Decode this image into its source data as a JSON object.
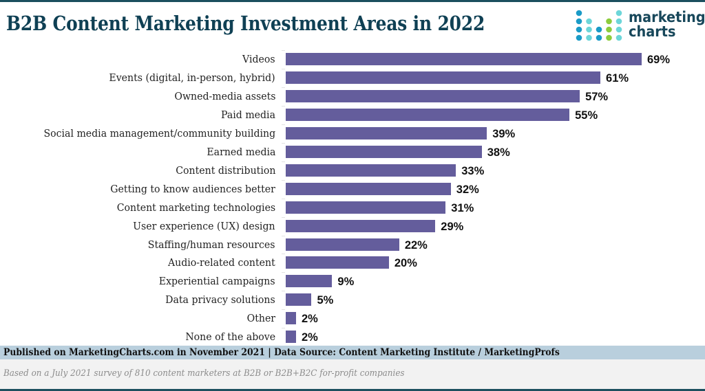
{
  "header": {
    "title": "B2B Content Marketing Investment Areas in 2022",
    "logo": {
      "line1": "marketing",
      "line2": "charts",
      "icon": "dot-grid-logo-icon",
      "colors": {
        "blue": "#1a9bc7",
        "teal": "#6dd6d9",
        "green": "#8ccc3c"
      }
    }
  },
  "colors": {
    "bar": "#645d9c",
    "title": "#0f4054",
    "rule": "#1c4f5e",
    "footer_band": "#b9cfdd",
    "note_band": "#f2f2f2"
  },
  "chart_data": {
    "type": "bar",
    "orientation": "horizontal",
    "title": "B2B Content Marketing Investment Areas in 2022",
    "xlabel": "",
    "ylabel": "",
    "xlim": [
      0,
      69
    ],
    "grid": false,
    "legend": "none",
    "categories": [
      "Videos",
      "Events (digital, in-person, hybrid)",
      "Owned-media assets",
      "Paid media",
      "Social media management/community building",
      "Earned media",
      "Content distribution",
      "Getting to know audiences better",
      "Content marketing technologies",
      "User experience (UX) design",
      "Staffing/human resources",
      "Audio-related content",
      "Experiential campaigns",
      "Data privacy solutions",
      "Other",
      "None of the above"
    ],
    "values": [
      69,
      61,
      57,
      55,
      39,
      38,
      33,
      32,
      31,
      29,
      22,
      20,
      9,
      5,
      2,
      2
    ],
    "value_labels": [
      "69%",
      "61%",
      "57%",
      "55%",
      "39%",
      "38%",
      "33%",
      "32%",
      "31%",
      "29%",
      "22%",
      "20%",
      "9%",
      "5%",
      "2%",
      "2%"
    ],
    "unit": "%"
  },
  "footer": {
    "published": "Published on MarketingCharts.com in November 2021 | Data Source: Content Marketing Institute / MarketingProfs",
    "note": "Based on a July 2021 survey of 810 content marketers at B2B or B2B+B2C for-profit companies"
  }
}
